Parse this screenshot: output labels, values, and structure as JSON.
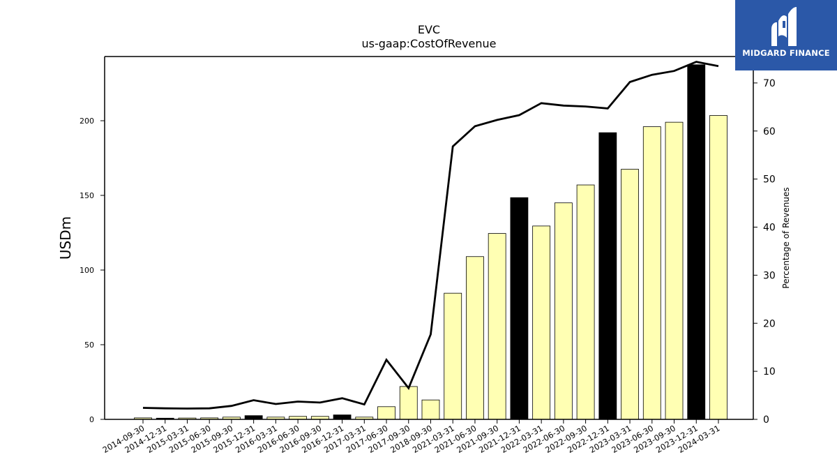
{
  "brand": {
    "name": "MIDGARD FINANCE",
    "background": "#2b58a8"
  },
  "chart_data": {
    "type": "bar",
    "title": "EVC",
    "subtitle": "us-gaap:CostOfRevenue",
    "ylabel": "USDm",
    "y2label": "Percentage of Revenues",
    "ylim": [
      0,
      243
    ],
    "y2lim": [
      0,
      75.5
    ],
    "yticks": [
      0,
      50,
      100,
      150,
      200
    ],
    "y2ticks": [
      0,
      10,
      20,
      30,
      40,
      50,
      60,
      70
    ],
    "categories": [
      "2014-09-30",
      "2014-12-31",
      "2015-03-31",
      "2015-06-30",
      "2015-09-30",
      "2015-12-31",
      "2016-03-31",
      "2016-06-30",
      "2016-09-30",
      "2016-12-31",
      "2017-03-31",
      "2017-06-30",
      "2017-09-30",
      "2018-09-30",
      "2021-03-31",
      "2021-06-30",
      "2021-09-30",
      "2021-12-31",
      "2022-03-31",
      "2022-06-30",
      "2022-09-30",
      "2022-12-31",
      "2023-03-31",
      "2023-06-30",
      "2023-09-30",
      "2023-12-31",
      "2024-03-31"
    ],
    "series": [
      {
        "kind": "bar",
        "values": [
          1.0,
          0.8,
          0.9,
          1.0,
          1.5,
          2.5,
          1.5,
          2.0,
          2.0,
          3.0,
          1.5,
          8.5,
          22.0,
          13.0,
          84.5,
          109.0,
          124.5,
          148.5,
          129.5,
          145.0,
          157.0,
          192.0,
          167.5,
          196.0,
          199.0,
          237.5,
          203.5
        ],
        "year_end": [
          false,
          true,
          false,
          false,
          false,
          true,
          false,
          false,
          false,
          true,
          false,
          false,
          false,
          false,
          false,
          false,
          false,
          true,
          false,
          false,
          false,
          true,
          false,
          false,
          false,
          true,
          false
        ]
      },
      {
        "kind": "line",
        "axis": "right",
        "values": [
          2.4,
          2.3,
          2.25,
          2.3,
          2.8,
          4.0,
          3.2,
          3.7,
          3.5,
          4.4,
          3.1,
          12.4,
          6.5,
          17.7,
          56.8,
          61.0,
          62.3,
          63.3,
          65.8,
          65.3,
          65.1,
          64.7,
          70.2,
          71.7,
          72.5,
          74.4,
          73.5
        ]
      }
    ],
    "colors": {
      "bar_fill": "#ffffb3",
      "bar_year_end": "#000000",
      "bar_edge": "#000000",
      "line": "#000000"
    },
    "grid": false
  }
}
